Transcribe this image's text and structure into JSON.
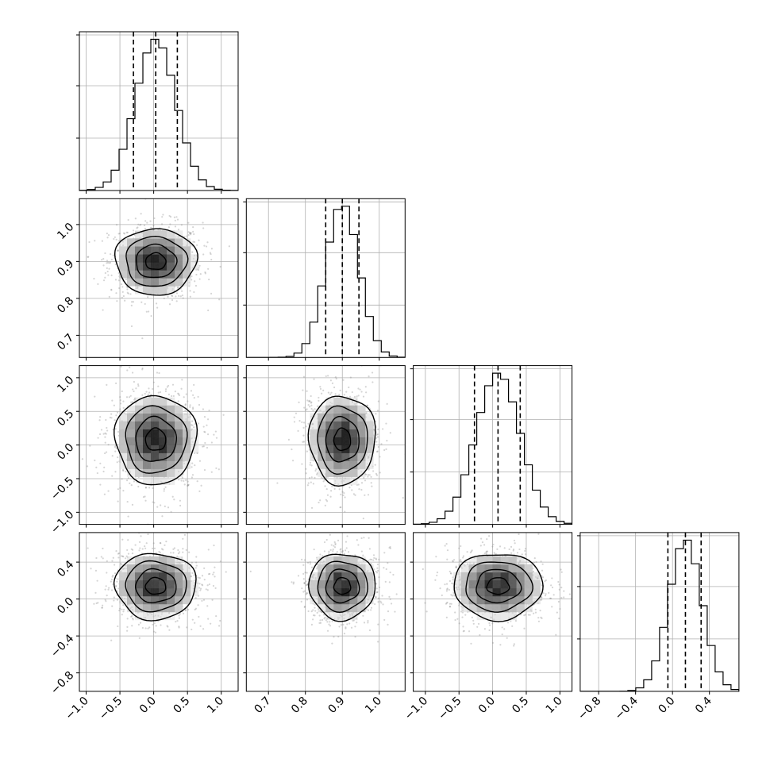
{
  "chart_data": {
    "type": "corner",
    "title": "",
    "parameters": [
      {
        "mean": 0.03,
        "sd": 0.3,
        "range": [
          -1.1,
          1.25
        ],
        "ticks": [
          -1.0,
          -0.5,
          0.0,
          0.5,
          1.0
        ],
        "tick_labels": [
          "−1.0",
          "−0.5",
          "0.0",
          "0.5",
          "1.0"
        ],
        "quantiles": [
          -0.3,
          0.03,
          0.35
        ]
      },
      {
        "mean": 0.9,
        "sd": 0.045,
        "range": [
          0.64,
          1.07
        ],
        "ticks": [
          0.7,
          0.8,
          0.9,
          1.0
        ],
        "tick_labels": [
          "0.7",
          "0.8",
          "0.9",
          "1.0"
        ],
        "quantiles": [
          0.855,
          0.9,
          0.945
        ]
      },
      {
        "mean": 0.08,
        "sd": 0.33,
        "range": [
          -1.18,
          1.18
        ],
        "ticks": [
          -1.0,
          -0.5,
          0.0,
          0.5,
          1.0
        ],
        "tick_labels": [
          "−1.0",
          "−0.5",
          "0.0",
          "0.5",
          "1.0"
        ],
        "quantiles": [
          -0.27,
          0.08,
          0.41
        ]
      },
      {
        "mean": 0.14,
        "sd": 0.18,
        "range": [
          -1.0,
          0.72
        ],
        "ticks": [
          -0.8,
          -0.4,
          0.0,
          0.4
        ],
        "tick_labels": [
          "−0.8",
          "−0.4",
          "0.0",
          "0.4"
        ],
        "quantiles": [
          -0.05,
          0.14,
          0.31
        ]
      }
    ],
    "grid": true,
    "hist_bins": 20,
    "contour_levels_sigma": [
      0.5,
      1.0,
      1.5,
      2.0
    ],
    "colors": {
      "line": "#000000",
      "scatter": "#888888",
      "grid": "#b0b0b0"
    }
  }
}
